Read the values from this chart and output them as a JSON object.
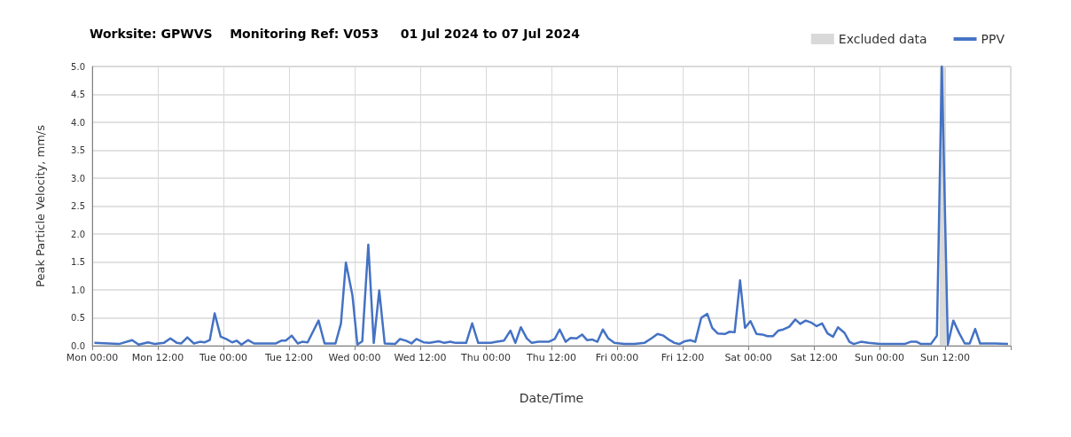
{
  "chart_data": {
    "type": "line",
    "title": "Worksite: GPWVS    Monitoring Ref: V053     01 Jul 2024 to 07 Jul 2024",
    "xlabel": "Date/Time",
    "ylabel": "Peak Particle Velocity, mm/s",
    "xlim": [
      "2024-07-01T00:00",
      "2024-07-08T00:00"
    ],
    "xticks": [
      {
        "value": "2024-07-01T00:00",
        "label": "Mon 00:00"
      },
      {
        "value": "2024-07-01T12:00",
        "label": "Mon 12:00"
      },
      {
        "value": "2024-07-02T00:00",
        "label": "Tue 00:00"
      },
      {
        "value": "2024-07-02T12:00",
        "label": "Tue 12:00"
      },
      {
        "value": "2024-07-03T00:00",
        "label": "Wed 00:00"
      },
      {
        "value": "2024-07-03T12:00",
        "label": "Wed 12:00"
      },
      {
        "value": "2024-07-04T00:00",
        "label": "Thu 00:00"
      },
      {
        "value": "2024-07-04T12:00",
        "label": "Thu 12:00"
      },
      {
        "value": "2024-07-05T00:00",
        "label": "Fri 00:00"
      },
      {
        "value": "2024-07-05T12:00",
        "label": "Fri 12:00"
      },
      {
        "value": "2024-07-06T00:00",
        "label": "Sat 00:00"
      },
      {
        "value": "2024-07-06T12:00",
        "label": "Sat 12:00"
      },
      {
        "value": "2024-07-07T00:00",
        "label": "Sun 00:00"
      },
      {
        "value": "2024-07-07T12:00",
        "label": "Sun 12:00"
      },
      {
        "value": "2024-07-08T00:00",
        "label": null
      }
    ],
    "ylim": [
      0,
      5
    ],
    "yticks": [
      {
        "value": 0,
        "label": "0.0"
      },
      {
        "value": 0.5,
        "label": "0.5"
      },
      {
        "value": 1,
        "label": "1.0"
      },
      {
        "value": 1.5,
        "label": "1.5"
      },
      {
        "value": 2,
        "label": "2.0"
      },
      {
        "value": 2.5,
        "label": "2.5"
      },
      {
        "value": 3,
        "label": "3.0"
      },
      {
        "value": 3.5,
        "label": "3.5"
      },
      {
        "value": 4,
        "label": "4.0"
      },
      {
        "value": 4.5,
        "label": "4.5"
      },
      {
        "value": 5,
        "label": "5.0"
      }
    ],
    "grid": true,
    "legend": "top right",
    "marker": "none",
    "line_style": "solid",
    "bands": [
      {
        "axis": "x",
        "from": "2024-07-07T11:00",
        "to": "2024-07-07T12:00",
        "label": "Excluded data",
        "color": "#d9d9d9"
      }
    ],
    "series": [
      {
        "name": "PPV",
        "color": "#4472c4",
        "x": [
          "2024-07-01T00:24",
          "2024-07-01T04:54",
          "2024-07-01T07:18",
          "2024-07-01T08:30",
          "2024-07-01T10:12",
          "2024-07-01T11:30",
          "2024-07-01T13:06",
          "2024-07-01T14:18",
          "2024-07-01T15:30",
          "2024-07-01T16:18",
          "2024-07-01T17:24",
          "2024-07-01T18:36",
          "2024-07-01T19:42",
          "2024-07-01T20:36",
          "2024-07-01T21:30",
          "2024-07-01T22:24",
          "2024-07-01T23:30",
          "2024-07-02T00:30",
          "2024-07-02T01:36",
          "2024-07-02T02:24",
          "2024-07-02T03:18",
          "2024-07-02T04:30",
          "2024-07-02T05:36",
          "2024-07-02T09:36",
          "2024-07-02T10:36",
          "2024-07-02T11:24",
          "2024-07-02T12:30",
          "2024-07-02T13:36",
          "2024-07-02T14:24",
          "2024-07-02T15:24",
          "2024-07-02T17:24",
          "2024-07-02T18:30",
          "2024-07-02T20:30",
          "2024-07-02T21:30",
          "2024-07-02T22:24",
          "2024-07-02T23:36",
          "2024-07-03T00:30",
          "2024-07-03T01:24",
          "2024-07-03T02:30",
          "2024-07-03T03:30",
          "2024-07-03T04:30",
          "2024-07-03T05:30",
          "2024-07-03T07:24",
          "2024-07-03T08:18",
          "2024-07-03T09:24",
          "2024-07-03T10:24",
          "2024-07-03T11:18",
          "2024-07-03T12:36",
          "2024-07-03T13:42",
          "2024-07-03T15:24",
          "2024-07-03T16:24",
          "2024-07-03T17:30",
          "2024-07-03T18:30",
          "2024-07-03T20:24",
          "2024-07-03T21:30",
          "2024-07-03T22:36",
          "2024-07-04T00:54",
          "2024-07-04T02:00",
          "2024-07-04T03:18",
          "2024-07-04T04:30",
          "2024-07-04T05:24",
          "2024-07-04T06:24",
          "2024-07-04T07:30",
          "2024-07-04T08:24",
          "2024-07-04T09:36",
          "2024-07-04T11:30",
          "2024-07-04T12:36",
          "2024-07-04T13:30",
          "2024-07-04T14:36",
          "2024-07-04T15:30",
          "2024-07-04T16:36",
          "2024-07-04T17:36",
          "2024-07-04T18:30",
          "2024-07-04T19:30",
          "2024-07-04T20:24",
          "2024-07-04T21:24",
          "2024-07-04T22:24",
          "2024-07-04T23:30",
          "2024-07-05T01:18",
          "2024-07-05T03:12",
          "2024-07-05T05:00",
          "2024-07-05T06:24",
          "2024-07-05T07:24",
          "2024-07-05T08:30",
          "2024-07-05T09:36",
          "2024-07-05T10:30",
          "2024-07-05T11:24",
          "2024-07-05T12:24",
          "2024-07-05T13:24",
          "2024-07-05T14:18",
          "2024-07-05T15:24",
          "2024-07-05T16:30",
          "2024-07-05T17:24",
          "2024-07-05T18:24",
          "2024-07-05T19:42",
          "2024-07-05T20:36",
          "2024-07-05T21:30",
          "2024-07-05T22:30",
          "2024-07-05T23:24",
          "2024-07-06T00:24",
          "2024-07-06T01:30",
          "2024-07-06T02:36",
          "2024-07-06T03:30",
          "2024-07-06T04:30",
          "2024-07-06T05:30",
          "2024-07-06T06:24",
          "2024-07-06T07:30",
          "2024-07-06T08:36",
          "2024-07-06T09:30",
          "2024-07-06T10:30",
          "2024-07-06T11:36",
          "2024-07-06T12:30",
          "2024-07-06T13:30",
          "2024-07-06T14:30",
          "2024-07-06T15:30",
          "2024-07-06T16:24",
          "2024-07-06T17:36",
          "2024-07-06T18:30",
          "2024-07-06T19:18",
          "2024-07-06T20:36",
          "2024-07-06T22:00",
          "2024-07-07T00:06",
          "2024-07-07T03:18",
          "2024-07-07T04:36",
          "2024-07-07T05:42",
          "2024-07-07T06:48",
          "2024-07-07T07:36",
          "2024-07-07T09:24",
          "2024-07-07T10:30",
          "2024-07-07T11:24",
          "2024-07-07T12:30",
          "2024-07-07T13:30",
          "2024-07-07T14:36",
          "2024-07-07T15:36",
          "2024-07-07T16:30",
          "2024-07-07T17:30",
          "2024-07-07T18:24",
          "2024-07-07T21:06",
          "2024-07-07T23:30"
        ],
        "values": [
          0.05,
          0.03,
          0.1,
          0.02,
          0.06,
          0.03,
          0.05,
          0.13,
          0.05,
          0.04,
          0.15,
          0.04,
          0.07,
          0.06,
          0.1,
          0.58,
          0.16,
          0.12,
          0.06,
          0.09,
          0.02,
          0.1,
          0.04,
          0.04,
          0.09,
          0.09,
          0.18,
          0.04,
          0.07,
          0.06,
          0.45,
          0.04,
          0.04,
          0.4,
          1.49,
          0.9,
          0.02,
          0.08,
          1.81,
          0.05,
          0.99,
          0.04,
          0.03,
          0.12,
          0.09,
          0.04,
          0.12,
          0.06,
          0.05,
          0.08,
          0.05,
          0.07,
          0.05,
          0.05,
          0.4,
          0.05,
          0.05,
          0.07,
          0.09,
          0.27,
          0.05,
          0.33,
          0.13,
          0.05,
          0.07,
          0.07,
          0.12,
          0.29,
          0.07,
          0.14,
          0.13,
          0.2,
          0.1,
          0.11,
          0.07,
          0.29,
          0.13,
          0.05,
          0.03,
          0.03,
          0.05,
          0.14,
          0.21,
          0.18,
          0.1,
          0.05,
          0.03,
          0.08,
          0.1,
          0.07,
          0.5,
          0.57,
          0.32,
          0.22,
          0.21,
          0.25,
          0.24,
          1.17,
          0.32,
          0.44,
          0.21,
          0.2,
          0.17,
          0.17,
          0.27,
          0.29,
          0.34,
          0.47,
          0.39,
          0.45,
          0.41,
          0.35,
          0.4,
          0.22,
          0.16,
          0.33,
          0.23,
          0.07,
          0.03,
          0.07,
          0.05,
          0.03,
          0.03,
          0.03,
          0.07,
          0.07,
          0.03,
          0.03,
          0.18,
          5.0,
          0.02,
          0.45,
          0.22,
          0.04,
          0.04,
          0.3,
          0.04,
          0.04,
          0.03
        ]
      }
    ]
  }
}
